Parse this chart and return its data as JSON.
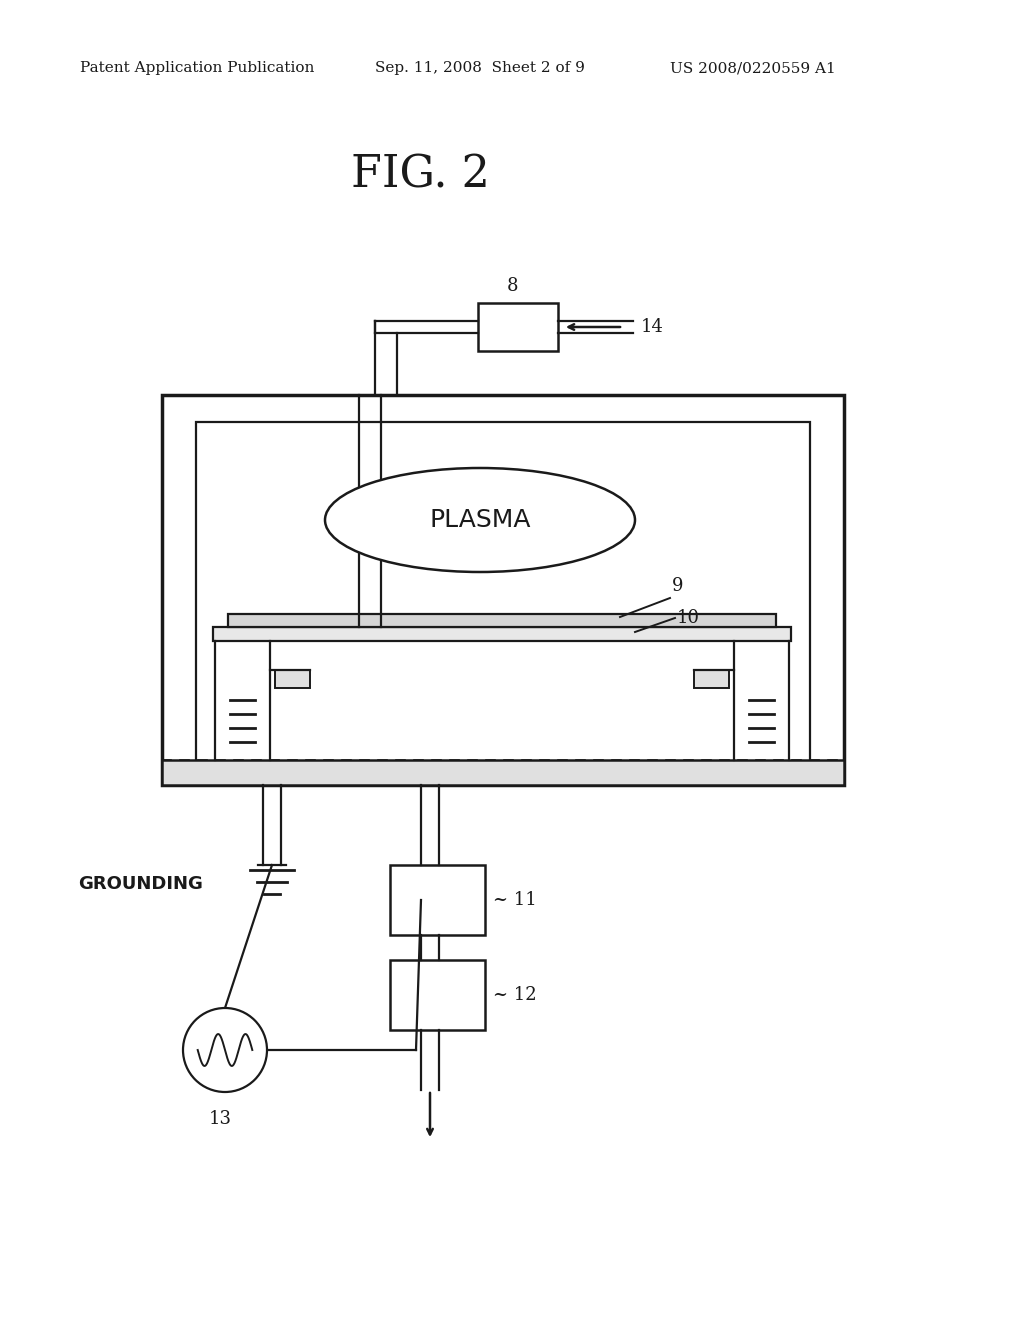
{
  "bg": "#ffffff",
  "header_left": "Patent Application Publication",
  "header_mid": "Sep. 11, 2008  Sheet 2 of 9",
  "header_right": "US 2008/0220559 A1",
  "fig_label": "FIG. 2",
  "black": "#1a1a1a"
}
